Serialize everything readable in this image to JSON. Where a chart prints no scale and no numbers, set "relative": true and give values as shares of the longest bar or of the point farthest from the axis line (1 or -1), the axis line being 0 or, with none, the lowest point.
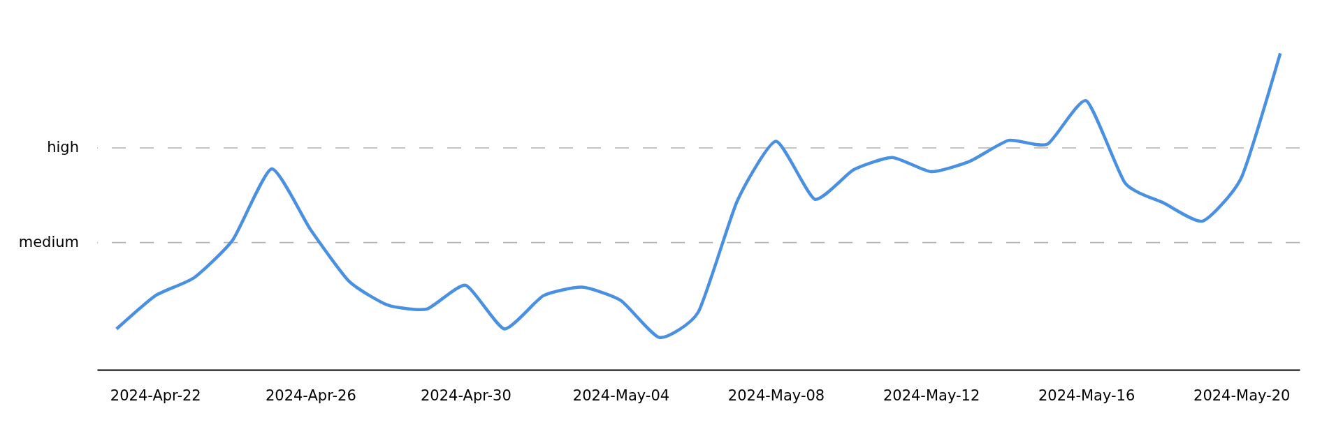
{
  "chart_data": {
    "type": "line",
    "relative": true,
    "x": [
      "2024-04-21",
      "2024-04-22",
      "2024-04-23",
      "2024-04-24",
      "2024-04-25",
      "2024-04-26",
      "2024-04-27",
      "2024-04-28",
      "2024-04-29",
      "2024-04-30",
      "2024-05-01",
      "2024-05-02",
      "2024-05-03",
      "2024-05-04",
      "2024-05-05",
      "2024-05-06",
      "2024-05-07",
      "2024-05-08",
      "2024-05-09",
      "2024-05-10",
      "2024-05-11",
      "2024-05-12",
      "2024-05-13",
      "2024-05-14",
      "2024-05-15",
      "2024-05-16",
      "2024-05-17",
      "2024-05-18",
      "2024-05-19",
      "2024-05-20",
      "2024-05-21"
    ],
    "series": [
      {
        "color": "#4a90e2",
        "values": [
          0.129,
          0.234,
          0.291,
          0.411,
          0.635,
          0.443,
          0.279,
          0.204,
          0.192,
          0.267,
          0.129,
          0.234,
          0.261,
          0.219,
          0.102,
          0.183,
          0.533,
          0.722,
          0.539,
          0.632,
          0.671,
          0.626,
          0.659,
          0.725,
          0.713,
          0.85,
          0.59,
          0.527,
          0.47,
          0.608,
          1.0
        ]
      }
    ],
    "xlim": [
      "2024-04-20T12:00",
      "2024-05-21T12:00"
    ],
    "xticks": [
      {
        "value": "2024-04-22",
        "label": "2024-Apr-22"
      },
      {
        "value": "2024-04-26",
        "label": "2024-Apr-26"
      },
      {
        "value": "2024-04-30",
        "label": "2024-Apr-30"
      },
      {
        "value": "2024-05-04",
        "label": "2024-May-04"
      },
      {
        "value": "2024-05-08",
        "label": "2024-May-08"
      },
      {
        "value": "2024-05-12",
        "label": "2024-May-12"
      },
      {
        "value": "2024-05-16",
        "label": "2024-May-16"
      },
      {
        "value": "2024-05-20",
        "label": "2024-May-20"
      }
    ],
    "ref_lines": [
      {
        "axis": "y",
        "value": 0.402,
        "label": "medium",
        "color": "#b3b3b3",
        "line_style": "dashed"
      },
      {
        "axis": "y",
        "value": 0.701,
        "label": "high",
        "color": "#b3b3b3",
        "line_style": "dashed"
      }
    ]
  }
}
